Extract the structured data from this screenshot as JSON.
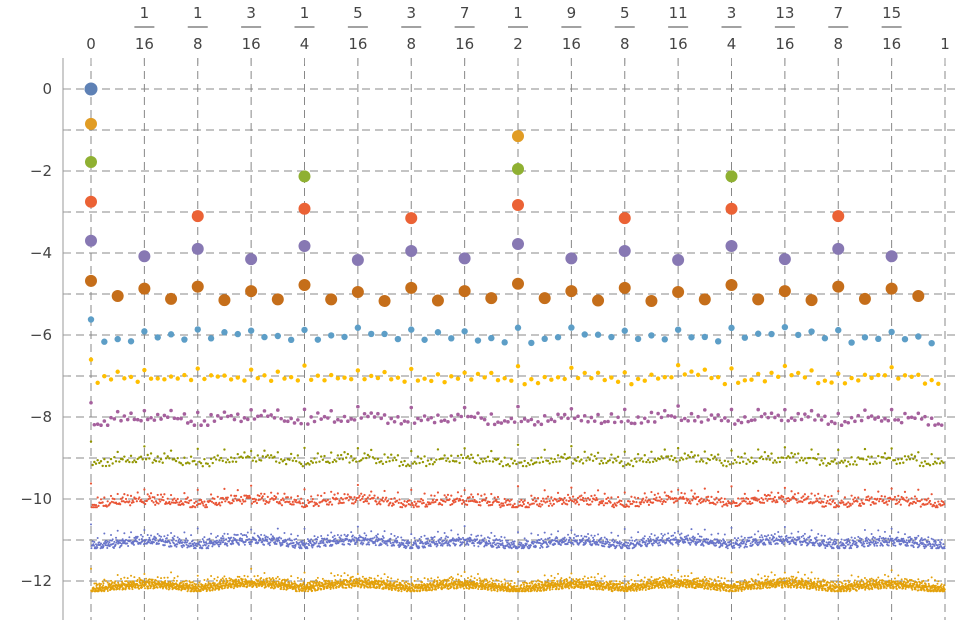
{
  "chart_data": {
    "type": "scatter",
    "title": "",
    "xlabel": "",
    "ylabel": "",
    "xlim": [
      0,
      1
    ],
    "ylim": [
      -12.8,
      0.8
    ],
    "grid": true,
    "x_tick_labels": [
      {
        "x": 0,
        "num": "0",
        "den": ""
      },
      {
        "x": 0.0625,
        "num": "1",
        "den": "16"
      },
      {
        "x": 0.125,
        "num": "1",
        "den": "8"
      },
      {
        "x": 0.1875,
        "num": "3",
        "den": "16"
      },
      {
        "x": 0.25,
        "num": "1",
        "den": "4"
      },
      {
        "x": 0.3125,
        "num": "5",
        "den": "16"
      },
      {
        "x": 0.375,
        "num": "3",
        "den": "8"
      },
      {
        "x": 0.4375,
        "num": "7",
        "den": "16"
      },
      {
        "x": 0.5,
        "num": "1",
        "den": "2"
      },
      {
        "x": 0.5625,
        "num": "9",
        "den": "16"
      },
      {
        "x": 0.625,
        "num": "5",
        "den": "8"
      },
      {
        "x": 0.6875,
        "num": "11",
        "den": "16"
      },
      {
        "x": 0.75,
        "num": "3",
        "den": "4"
      },
      {
        "x": 0.8125,
        "num": "13",
        "den": "16"
      },
      {
        "x": 0.875,
        "num": "7",
        "den": "8"
      },
      {
        "x": 0.9375,
        "num": "15",
        "den": "16"
      },
      {
        "x": 1,
        "num": "1",
        "den": ""
      }
    ],
    "y_ticks": [
      0,
      -2,
      -4,
      -6,
      -8,
      -10,
      -12
    ],
    "y_tick_labels": [
      "0",
      "−2",
      "−4",
      "−6",
      "−8",
      "−10",
      "−12"
    ],
    "y_minor_ticks": [
      -1,
      -3,
      -5,
      -7,
      -9,
      -11
    ],
    "series": [
      {
        "color": "#5e81b5",
        "points": [
          {
            "x": 0,
            "y": 0
          }
        ]
      },
      {
        "color": "#e19c24",
        "points": [
          {
            "x": 0,
            "y": -0.85
          },
          {
            "x": 0.5,
            "y": -1.15
          }
        ]
      },
      {
        "color": "#8fb032",
        "points": [
          {
            "x": 0,
            "y": -1.78
          },
          {
            "x": 0.25,
            "y": -2.13
          },
          {
            "x": 0.5,
            "y": -1.95
          },
          {
            "x": 0.75,
            "y": -2.13
          }
        ]
      },
      {
        "color": "#eb6235",
        "points": [
          {
            "x": 0,
            "y": -2.75
          },
          {
            "x": 0.125,
            "y": -3.1
          },
          {
            "x": 0.25,
            "y": -2.92
          },
          {
            "x": 0.375,
            "y": -3.15
          },
          {
            "x": 0.5,
            "y": -2.83
          },
          {
            "x": 0.625,
            "y": -3.15
          },
          {
            "x": 0.75,
            "y": -2.92
          },
          {
            "x": 0.875,
            "y": -3.1
          }
        ]
      },
      {
        "color": "#8778b3",
        "points": [
          {
            "x": 0,
            "y": -3.7
          },
          {
            "x": 0.0625,
            "y": -4.08
          },
          {
            "x": 0.125,
            "y": -3.9
          },
          {
            "x": 0.1875,
            "y": -4.15
          },
          {
            "x": 0.25,
            "y": -3.83
          },
          {
            "x": 0.3125,
            "y": -4.17
          },
          {
            "x": 0.375,
            "y": -3.95
          },
          {
            "x": 0.4375,
            "y": -4.13
          },
          {
            "x": 0.5,
            "y": -3.78
          },
          {
            "x": 0.5625,
            "y": -4.13
          },
          {
            "x": 0.625,
            "y": -3.95
          },
          {
            "x": 0.6875,
            "y": -4.17
          },
          {
            "x": 0.75,
            "y": -3.83
          },
          {
            "x": 0.8125,
            "y": -4.15
          },
          {
            "x": 0.875,
            "y": -3.9
          },
          {
            "x": 0.9375,
            "y": -4.08
          }
        ]
      },
      {
        "color": "#c56e1a",
        "points": [
          {
            "x": 0,
            "y": -4.68
          },
          {
            "x": 0.03125,
            "y": -5.05
          },
          {
            "x": 0.0625,
            "y": -4.87
          },
          {
            "x": 0.09375,
            "y": -5.12
          },
          {
            "x": 0.125,
            "y": -4.82
          },
          {
            "x": 0.15625,
            "y": -5.15
          },
          {
            "x": 0.1875,
            "y": -4.93
          },
          {
            "x": 0.21875,
            "y": -5.13
          },
          {
            "x": 0.25,
            "y": -4.78
          },
          {
            "x": 0.28125,
            "y": -5.13
          },
          {
            "x": 0.3125,
            "y": -4.95
          },
          {
            "x": 0.34375,
            "y": -5.17
          },
          {
            "x": 0.375,
            "y": -4.85
          },
          {
            "x": 0.40625,
            "y": -5.16
          },
          {
            "x": 0.4375,
            "y": -4.93
          },
          {
            "x": 0.46875,
            "y": -5.1
          },
          {
            "x": 0.5,
            "y": -4.75
          },
          {
            "x": 0.53125,
            "y": -5.1
          },
          {
            "x": 0.5625,
            "y": -4.93
          },
          {
            "x": 0.59375,
            "y": -5.16
          },
          {
            "x": 0.625,
            "y": -4.85
          },
          {
            "x": 0.65625,
            "y": -5.17
          },
          {
            "x": 0.6875,
            "y": -4.95
          },
          {
            "x": 0.71875,
            "y": -5.13
          },
          {
            "x": 0.75,
            "y": -4.78
          },
          {
            "x": 0.78125,
            "y": -5.13
          },
          {
            "x": 0.8125,
            "y": -4.93
          },
          {
            "x": 0.84375,
            "y": -5.15
          },
          {
            "x": 0.875,
            "y": -4.82
          },
          {
            "x": 0.90625,
            "y": -5.12
          },
          {
            "x": 0.9375,
            "y": -4.87
          },
          {
            "x": 0.96875,
            "y": -5.05
          }
        ]
      },
      {
        "color": "#5d9ec7",
        "level": 6,
        "top": -5.62,
        "bottom": -6.2,
        "size": 3.2
      },
      {
        "color": "#ffbf00",
        "level": 7,
        "top": -6.6,
        "bottom": -7.2,
        "size": 2.2
      },
      {
        "color": "#a5609d",
        "level": 8,
        "top": -7.6,
        "bottom": -8.2,
        "size": 1.8
      },
      {
        "color": "#929600",
        "level": 9,
        "top": -8.6,
        "bottom": -9.2,
        "size": 1.2
      },
      {
        "color": "#e95536",
        "level": 10,
        "top": -9.6,
        "bottom": -10.2,
        "size": 1.1
      },
      {
        "color": "#6874c9",
        "level": 11,
        "top": -10.6,
        "bottom": -11.2,
        "size": 1.0
      },
      {
        "color": "#e3a10b",
        "level": 12,
        "top": -11.7,
        "bottom": -12.25,
        "size": 1.0
      }
    ]
  }
}
